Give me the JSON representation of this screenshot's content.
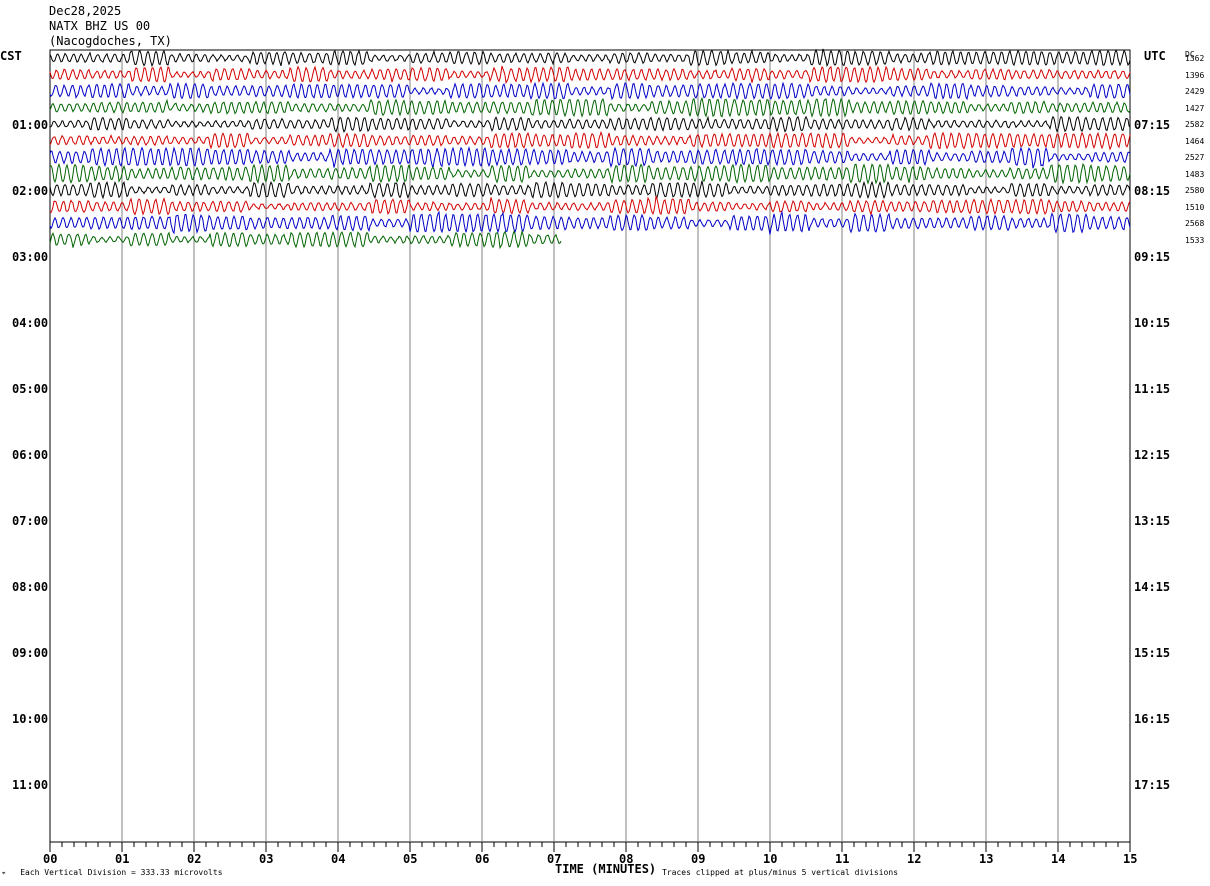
{
  "header": {
    "date": "Dec28,2025",
    "station": "NATX BHZ US 00",
    "location": "(Nacogdoches, TX)"
  },
  "left_zone": "CST",
  "right_zone": "UTC",
  "dc_label": "DC",
  "footer": {
    "left_note": "Each Vertical Division =  333.33 microvolts",
    "xlabel": "TIME (MINUTES)",
    "right_note": "Traces clipped at plus/minus 5 vertical divisions"
  },
  "colors": {
    "black": "#000000",
    "red": "#d40000",
    "blue": "#0000c8",
    "green": "#006400",
    "grid": "#808080"
  },
  "chart_data": {
    "type": "line",
    "chart_kind": "helicorder seismogram",
    "x_ticks": [
      "00",
      "01",
      "02",
      "03",
      "04",
      "05",
      "06",
      "07",
      "08",
      "09",
      "10",
      "11",
      "12",
      "13",
      "14",
      "15"
    ],
    "xlim": [
      0,
      15
    ],
    "left_hour_labels": [
      "01:00",
      "02:00",
      "03:00",
      "04:00",
      "05:00",
      "06:00",
      "07:00",
      "08:00",
      "09:00",
      "10:00",
      "11:00"
    ],
    "right_hour_labels": [
      "07:15",
      "08:15",
      "09:15",
      "10:15",
      "11:15",
      "12:15",
      "13:15",
      "14:15",
      "15:15",
      "16:15",
      "17:15"
    ],
    "trace_colors": [
      "black",
      "red",
      "blue",
      "green"
    ],
    "traces": [
      {
        "dc": "1362",
        "end_minute": 15,
        "amp": 5
      },
      {
        "dc": "1396",
        "end_minute": 15,
        "amp": 5
      },
      {
        "dc": "2429",
        "end_minute": 15,
        "amp": 5
      },
      {
        "dc": "1427",
        "end_minute": 15,
        "amp": 6
      },
      {
        "dc": "2582",
        "end_minute": 15,
        "amp": 5
      },
      {
        "dc": "1464",
        "end_minute": 15,
        "amp": 5
      },
      {
        "dc": "2527",
        "end_minute": 15,
        "amp": 6
      },
      {
        "dc": "1483",
        "end_minute": 15,
        "amp": 6
      },
      {
        "dc": "2580",
        "end_minute": 15,
        "amp": 5
      },
      {
        "dc": "1510",
        "end_minute": 15,
        "amp": 5
      },
      {
        "dc": "2568",
        "end_minute": 15,
        "amp": 6
      },
      {
        "dc": "1533",
        "end_minute": 7.1,
        "amp": 5
      }
    ]
  }
}
